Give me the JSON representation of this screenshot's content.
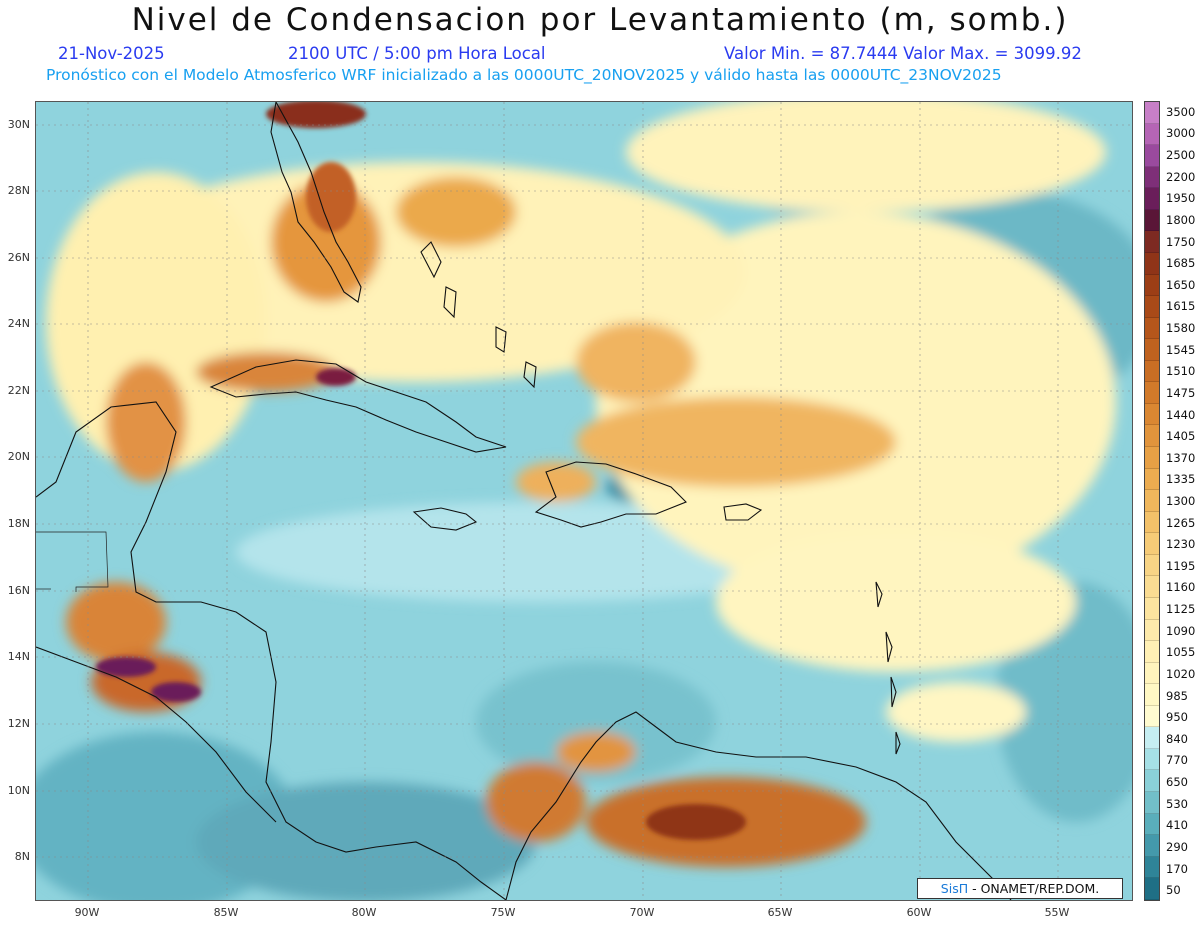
{
  "header": {
    "title": "Nivel de Condensacion por Levantamiento (m, somb.)",
    "date": "21-Nov-2025",
    "time": "2100 UTC / 5:00 pm Hora Local",
    "minmax": "Valor Min. = 87.7444   Valor Max. = 3099.92",
    "model_line": "Pronóstico con el Modelo Atmosferico WRF inicializado a las 0000UTC_20NOV2025 y válido hasta las  0000UTC_23NOV2025"
  },
  "axes": {
    "lat_labels": [
      "30N",
      "28N",
      "26N",
      "24N",
      "22N",
      "20N",
      "18N",
      "16N",
      "14N",
      "12N",
      "10N",
      "8N"
    ],
    "lon_labels": [
      "90W",
      "85W",
      "80W",
      "75W",
      "70W",
      "65W",
      "60W",
      "55W"
    ]
  },
  "legend": {
    "labels": [
      "3500",
      "3000",
      "2500",
      "2200",
      "1950",
      "1800",
      "1750",
      "1685",
      "1650",
      "1615",
      "1580",
      "1545",
      "1510",
      "1475",
      "1440",
      "1405",
      "1370",
      "1335",
      "1300",
      "1265",
      "1230",
      "1195",
      "1160",
      "1125",
      "1090",
      "1055",
      "1020",
      "985",
      "950",
      "840",
      "770",
      "650",
      "530",
      "410",
      "290",
      "170",
      "50"
    ],
    "colors": [
      "#c77fc7",
      "#b565b5",
      "#9a4a9e",
      "#7e2f78",
      "#6a1e5a",
      "#5a1637",
      "#7d2a22",
      "#8f3418",
      "#9c3e16",
      "#a94a18",
      "#b5561b",
      "#c0621f",
      "#c96e24",
      "#d27a2a",
      "#da8732",
      "#e1943c",
      "#e7a045",
      "#ecac50",
      "#f0b75c",
      "#f3c169",
      "#f6cb77",
      "#f8d485",
      "#fadc92",
      "#fce49f",
      "#fdeaab",
      "#fff0b5",
      "#fff4bd",
      "#fff8c4",
      "#fffbd0",
      "#c6eef2",
      "#a6e0e6",
      "#8ad0d8",
      "#72bfc9",
      "#5aaebb",
      "#4499ab",
      "#2f8498",
      "#1f6f85"
    ]
  },
  "credit": {
    "brand": "SisΠ",
    "text": " - ONAMET/REP.DOM."
  }
}
